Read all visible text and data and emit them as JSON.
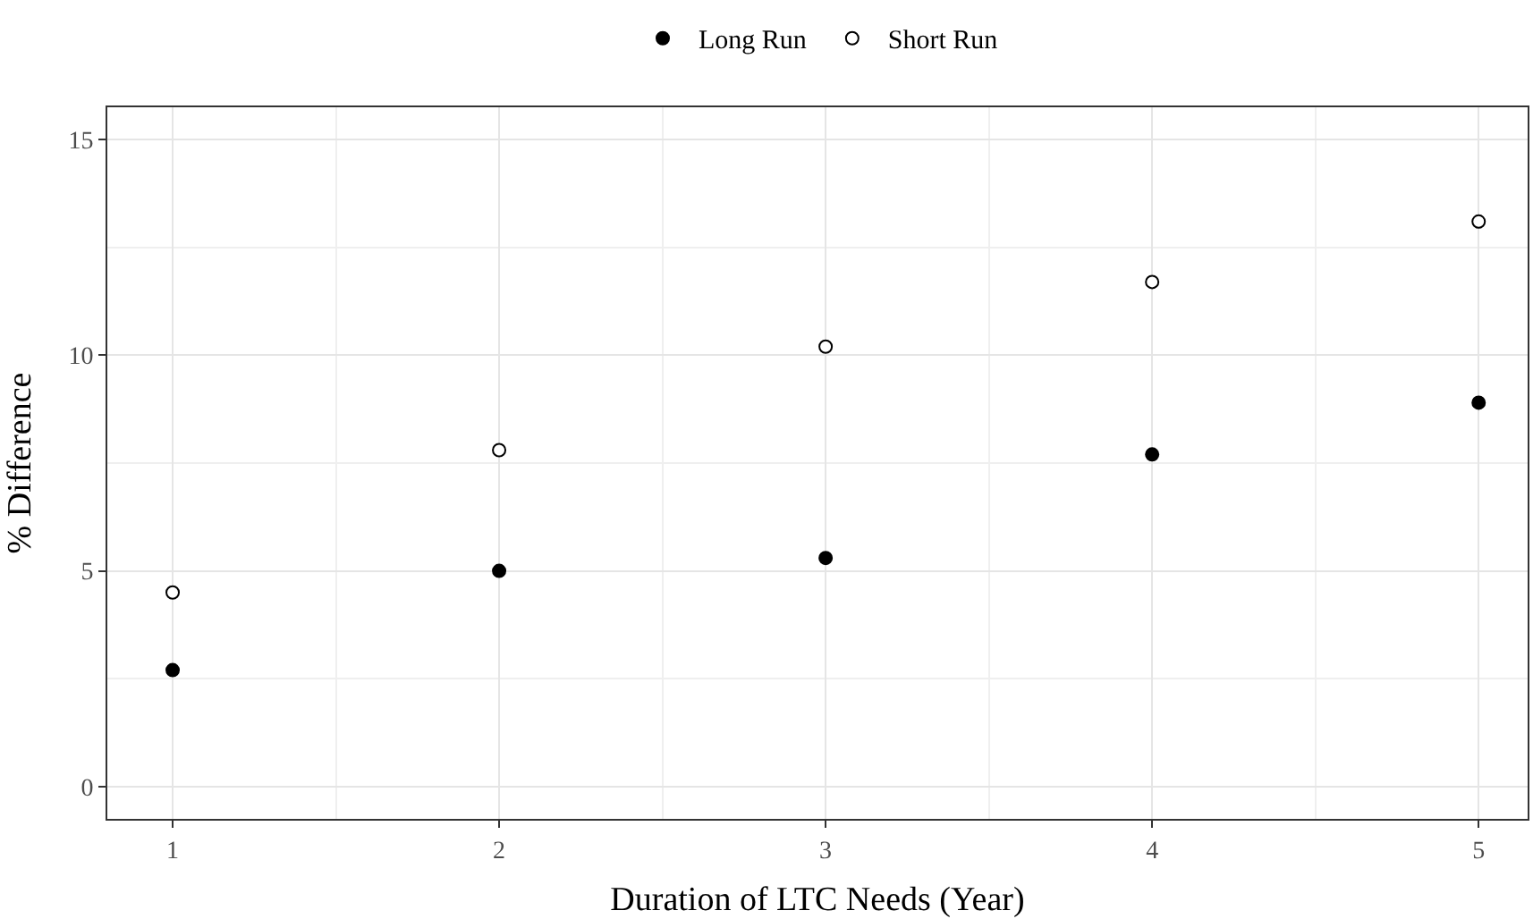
{
  "chart_data": {
    "type": "scatter",
    "xlabel": "Duration of LTC Needs (Year)",
    "ylabel": "% Difference",
    "x": [
      1,
      2,
      3,
      4,
      5
    ],
    "series": [
      {
        "name": "Long Run",
        "color": "#000000",
        "marker": "circle",
        "values": [
          2.7,
          5.0,
          5.3,
          7.7,
          8.9
        ]
      },
      {
        "name": "Short Run",
        "color": "#ffffff",
        "marker": "circle",
        "values": [
          4.5,
          7.8,
          10.2,
          11.7,
          13.1
        ]
      }
    ],
    "xlim": [
      0.8,
      5.15
    ],
    "ylim": [
      -0.75,
      15.75
    ],
    "xticks": [
      1,
      2,
      3,
      4,
      5
    ],
    "yticks": [
      0,
      5,
      10,
      15
    ],
    "grid": true,
    "legend": "top"
  }
}
